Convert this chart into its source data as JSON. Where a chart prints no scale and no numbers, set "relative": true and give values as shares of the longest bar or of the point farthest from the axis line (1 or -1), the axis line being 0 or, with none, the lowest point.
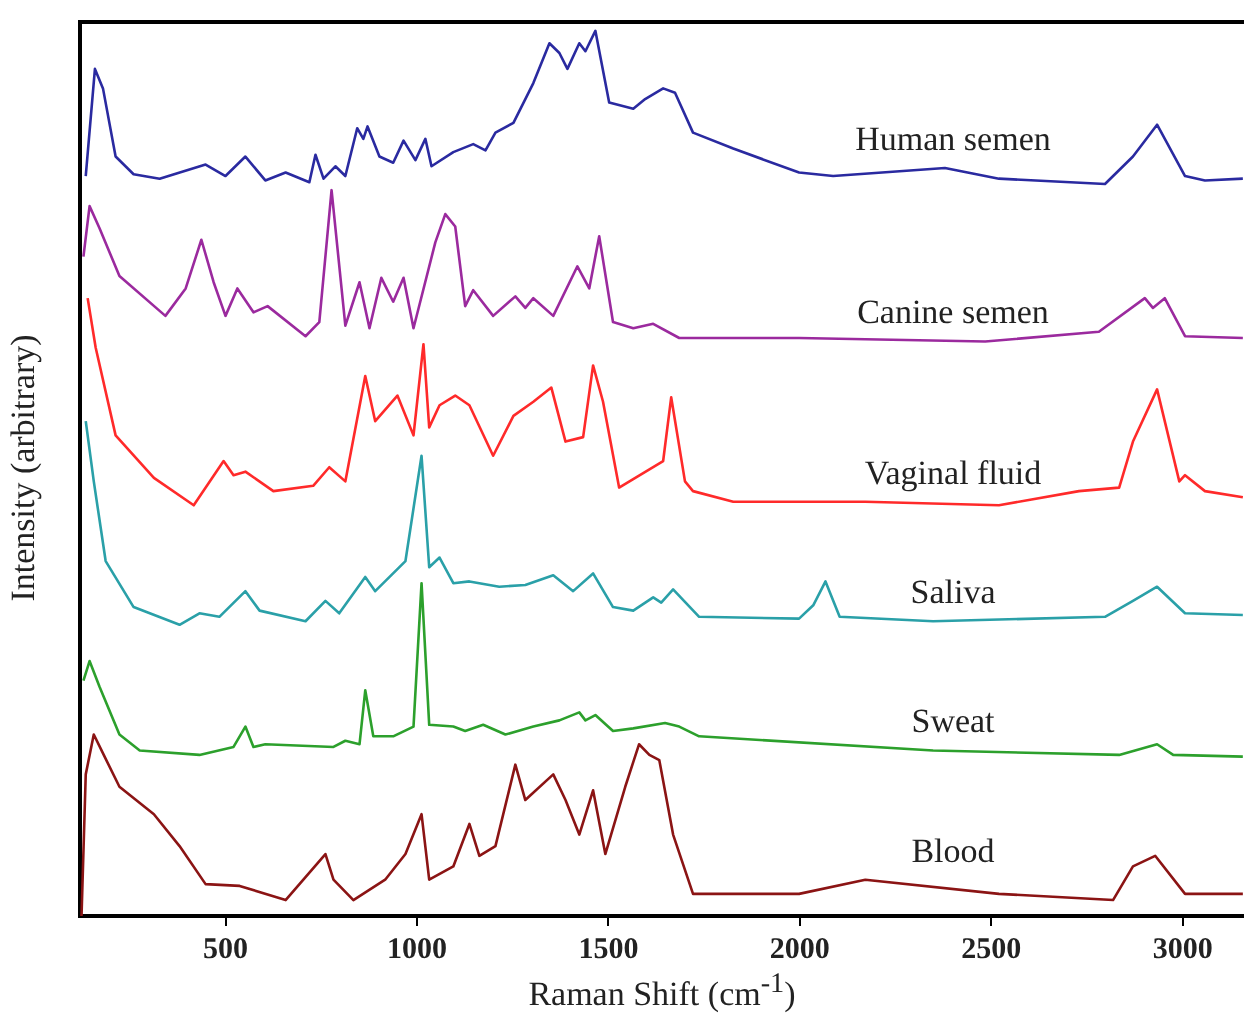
{
  "chart_data": {
    "type": "line",
    "relative": true,
    "xlabel": "Raman Shift (cm$^{-1}$)",
    "ylabel": "Intensity (arbitrary)",
    "xlim": [
      120,
      3160
    ],
    "xticks": [
      500,
      1000,
      1500,
      2000,
      2500,
      3000
    ],
    "grid": false,
    "legend": false,
    "series": [
      {
        "name": "Human semen",
        "color": "#2a2aa0",
        "x": [
          135,
          159,
          180,
          213,
          260,
          328,
          448,
          500,
          552,
          604,
          657,
          719,
          735,
          756,
          787,
          813,
          844,
          860,
          871,
          902,
          938,
          965,
          996,
          1022,
          1038,
          1095,
          1147,
          1179,
          1205,
          1252,
          1304,
          1346,
          1372,
          1393,
          1424,
          1440,
          1466,
          1502,
          1565,
          1596,
          1643,
          1674,
          1721,
          1826,
          1998,
          2087,
          2379,
          2520,
          2797,
          2870,
          2933,
          3006,
          3058,
          3157
        ],
        "values": [
          0.836,
          0.957,
          0.935,
          0.858,
          0.838,
          0.833,
          0.849,
          0.836,
          0.858,
          0.831,
          0.84,
          0.829,
          0.86,
          0.833,
          0.847,
          0.836,
          0.89,
          0.878,
          0.892,
          0.858,
          0.851,
          0.876,
          0.854,
          0.878,
          0.847,
          0.863,
          0.872,
          0.865,
          0.885,
          0.896,
          0.941,
          0.986,
          0.975,
          0.957,
          0.986,
          0.977,
          1.0,
          0.919,
          0.912,
          0.923,
          0.935,
          0.93,
          0.885,
          0.867,
          0.84,
          0.836,
          0.845,
          0.833,
          0.827,
          0.858,
          0.894,
          0.836,
          0.831,
          0.833
        ]
      },
      {
        "name": "Canine semen",
        "color": "#9b2a9e",
        "x": [
          129,
          145,
          171,
          223,
          343,
          396,
          437,
          469,
          500,
          531,
          573,
          610,
          709,
          745,
          777,
          813,
          850,
          876,
          907,
          938,
          965,
          991,
          1048,
          1074,
          1100,
          1126,
          1147,
          1199,
          1257,
          1283,
          1304,
          1356,
          1419,
          1450,
          1476,
          1512,
          1565,
          1617,
          1685,
          1998,
          2484,
          2781,
          2901,
          2922,
          2953,
          3006,
          3157
        ],
        "values": [
          0.745,
          0.802,
          0.777,
          0.723,
          0.678,
          0.709,
          0.764,
          0.716,
          0.678,
          0.709,
          0.682,
          0.689,
          0.655,
          0.671,
          0.82,
          0.667,
          0.716,
          0.664,
          0.721,
          0.694,
          0.721,
          0.664,
          0.761,
          0.793,
          0.779,
          0.689,
          0.707,
          0.678,
          0.7,
          0.687,
          0.698,
          0.678,
          0.734,
          0.709,
          0.768,
          0.671,
          0.664,
          0.669,
          0.653,
          0.653,
          0.649,
          0.66,
          0.698,
          0.687,
          0.698,
          0.655,
          0.653
        ]
      },
      {
        "name": "Vaginal fluid",
        "color": "#ff2a2a",
        "x": [
          140,
          161,
          213,
          313,
          417,
          495,
          521,
          552,
          625,
          729,
          771,
          813,
          865,
          891,
          949,
          991,
          1017,
          1032,
          1059,
          1100,
          1137,
          1199,
          1252,
          1304,
          1351,
          1388,
          1434,
          1460,
          1486,
          1528,
          1643,
          1664,
          1700,
          1721,
          1826,
          2171,
          2520,
          2729,
          2834,
          2870,
          2933,
          2991,
          3006,
          3058,
          3157
        ],
        "values": [
          0.698,
          0.642,
          0.543,
          0.495,
          0.464,
          0.514,
          0.498,
          0.502,
          0.48,
          0.486,
          0.507,
          0.491,
          0.61,
          0.559,
          0.588,
          0.543,
          0.646,
          0.552,
          0.577,
          0.588,
          0.577,
          0.52,
          0.565,
          0.581,
          0.597,
          0.536,
          0.541,
          0.622,
          0.581,
          0.484,
          0.514,
          0.586,
          0.491,
          0.48,
          0.468,
          0.468,
          0.464,
          0.48,
          0.484,
          0.536,
          0.595,
          0.491,
          0.498,
          0.48,
          0.473
        ]
      },
      {
        "name": "Saliva",
        "color": "#2aa0a8",
        "x": [
          135,
          156,
          187,
          260,
          380,
          432,
          484,
          552,
          589,
          709,
          761,
          797,
          865,
          891,
          970,
          1012,
          1032,
          1059,
          1095,
          1137,
          1215,
          1283,
          1356,
          1408,
          1460,
          1512,
          1565,
          1617,
          1638,
          1669,
          1737,
          1998,
          2035,
          2067,
          2104,
          2348,
          2797,
          2870,
          2933,
          3006,
          3157
        ],
        "values": [
          0.559,
          0.491,
          0.401,
          0.349,
          0.329,
          0.342,
          0.338,
          0.367,
          0.345,
          0.333,
          0.356,
          0.342,
          0.383,
          0.367,
          0.401,
          0.52,
          0.394,
          0.405,
          0.376,
          0.378,
          0.372,
          0.374,
          0.385,
          0.367,
          0.387,
          0.349,
          0.345,
          0.36,
          0.354,
          0.369,
          0.338,
          0.336,
          0.351,
          0.378,
          0.338,
          0.333,
          0.338,
          0.356,
          0.372,
          0.342,
          0.34
        ]
      },
      {
        "name": "Sweat",
        "color": "#2ca02c",
        "x": [
          129,
          145,
          171,
          223,
          276,
          432,
          521,
          552,
          573,
          604,
          782,
          813,
          850,
          865,
          886,
          938,
          991,
          1012,
          1032,
          1095,
          1126,
          1173,
          1231,
          1304,
          1372,
          1424,
          1440,
          1466,
          1512,
          1565,
          1648,
          1685,
          1737,
          2348,
          2834,
          2933,
          2975,
          3157
        ],
        "values": [
          0.266,
          0.288,
          0.259,
          0.205,
          0.187,
          0.182,
          0.191,
          0.214,
          0.191,
          0.194,
          0.191,
          0.198,
          0.194,
          0.255,
          0.203,
          0.203,
          0.214,
          0.376,
          0.216,
          0.214,
          0.209,
          0.216,
          0.205,
          0.214,
          0.221,
          0.23,
          0.221,
          0.227,
          0.209,
          0.212,
          0.218,
          0.214,
          0.203,
          0.187,
          0.182,
          0.194,
          0.182,
          0.18
        ]
      },
      {
        "name": "Blood",
        "color": "#8b1414",
        "x": [
          124,
          135,
          156,
          182,
          223,
          313,
          380,
          448,
          537,
          657,
          761,
          782,
          834,
          917,
          970,
          1012,
          1032,
          1095,
          1137,
          1163,
          1205,
          1257,
          1283,
          1356,
          1388,
          1424,
          1460,
          1492,
          1544,
          1580,
          1607,
          1633,
          1669,
          1721,
          1998,
          2171,
          2520,
          2818,
          2870,
          2928,
          3006,
          3157
        ],
        "values": [
          0,
          0.16,
          0.205,
          0.182,
          0.146,
          0.115,
          0.079,
          0.036,
          0.034,
          0.018,
          0.07,
          0.041,
          0.018,
          0.041,
          0.07,
          0.115,
          0.041,
          0.056,
          0.104,
          0.068,
          0.079,
          0.171,
          0.131,
          0.16,
          0.131,
          0.092,
          0.142,
          0.07,
          0.146,
          0.194,
          0.182,
          0.176,
          0.092,
          0.025,
          0.025,
          0.041,
          0.025,
          0.018,
          0.056,
          0.068,
          0.025,
          0.025
        ]
      }
    ]
  }
}
